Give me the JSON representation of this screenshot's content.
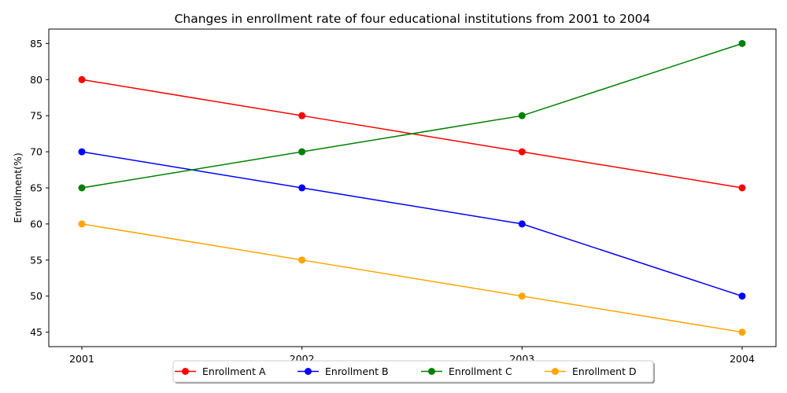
{
  "chart_data": {
    "type": "line",
    "title": "Changes in enrollment rate of four educational institutions from 2001 to 2004",
    "xlabel": "",
    "ylabel": "Enrollment(%)",
    "categories": [
      "2001",
      "2002",
      "2003",
      "2004"
    ],
    "ylim": [
      43,
      87
    ],
    "yticks": [
      45,
      50,
      55,
      60,
      65,
      70,
      75,
      80,
      85
    ],
    "grid": false,
    "legend_position": "bottom-center",
    "series": [
      {
        "name": "Enrollment A",
        "color": "#ff0000",
        "values": [
          80,
          75,
          70,
          65
        ]
      },
      {
        "name": "Enrollment B",
        "color": "#0000ff",
        "values": [
          70,
          65,
          60,
          50
        ]
      },
      {
        "name": "Enrollment C",
        "color": "#008000",
        "values": [
          65,
          70,
          75,
          85
        ]
      },
      {
        "name": "Enrollment D",
        "color": "#ffa500",
        "values": [
          60,
          55,
          50,
          45
        ]
      }
    ]
  }
}
